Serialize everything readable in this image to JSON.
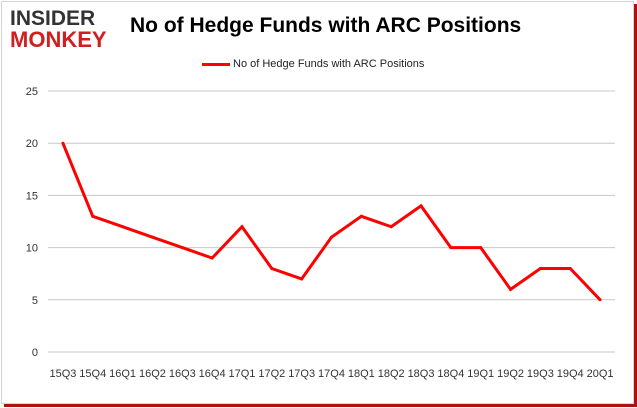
{
  "logo": {
    "top": "INSIDER",
    "bottom": "MONKEY"
  },
  "colors": {
    "line": "#ff0000",
    "grid": "#c8c8c8",
    "logo_red": "#d11f1f"
  },
  "chart_data": {
    "type": "line",
    "title": "No of Hedge Funds with ARC Positions",
    "xlabel": "",
    "ylabel": "",
    "legend": "top",
    "grid": true,
    "ylim": [
      0,
      25
    ],
    "yticks": [
      0,
      5,
      10,
      15,
      20,
      25
    ],
    "categories": [
      "15Q3",
      "15Q4",
      "16Q1",
      "16Q2",
      "16Q3",
      "16Q4",
      "17Q1",
      "17Q2",
      "17Q3",
      "17Q4",
      "18Q1",
      "18Q2",
      "18Q3",
      "18Q4",
      "19Q1",
      "19Q2",
      "19Q3",
      "19Q4",
      "20Q1"
    ],
    "series": [
      {
        "name": "No of Hedge Funds with ARC Positions",
        "values": [
          20,
          13,
          12,
          11,
          10,
          9,
          12,
          8,
          7,
          11,
          13,
          12,
          14,
          10,
          10,
          6,
          8,
          8,
          5
        ]
      }
    ]
  }
}
